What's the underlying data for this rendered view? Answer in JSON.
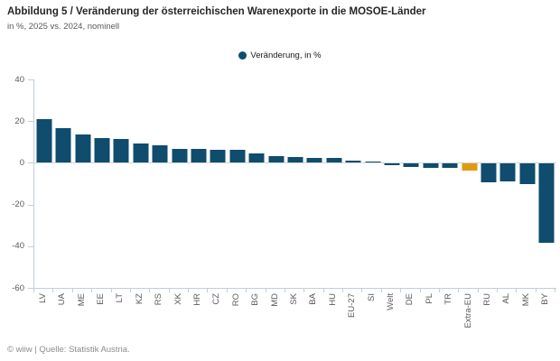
{
  "header": {
    "title": "Abbildung 5 / Veränderung der österreichischen Warenexporte in die MOSOE-Länder",
    "subtitle": "in %, 2025 vs. 2024, nominell"
  },
  "legend": {
    "label": "Veränderung, in %"
  },
  "footer": {
    "source": "© wiiw | Quelle: Statistik Austria."
  },
  "chart_data": {
    "type": "bar",
    "title": "Abbildung 5 / Veränderung der österreichischen Warenexporte in die MOSOE-Länder",
    "subtitle": "in %, 2025 vs. 2024, nominell",
    "legend_entries": [
      "Veränderung, in %"
    ],
    "legend_position": "top-center",
    "categories": [
      "LV",
      "UA",
      "ME",
      "EE",
      "LT",
      "KZ",
      "RS",
      "XK",
      "HR",
      "CZ",
      "RO",
      "BG",
      "MD",
      "SK",
      "BA",
      "HU",
      "EU-27",
      "SI",
      "Welt",
      "DE",
      "PL",
      "TR",
      "Extra-EU",
      "RU",
      "AL",
      "MK",
      "BY"
    ],
    "values": [
      21,
      16.5,
      13.8,
      12,
      11.6,
      9.2,
      8.2,
      6.6,
      6.5,
      6.4,
      6.3,
      4.6,
      3.3,
      2.7,
      2.5,
      2.4,
      1.0,
      0.4,
      -0.5,
      -1.6,
      -1.9,
      -2.0,
      -3.2,
      -9.0,
      -8.5,
      -10.0,
      -38.0
    ],
    "xlabel": "",
    "ylabel": "",
    "ylim": [
      -60,
      40
    ],
    "yticks": [
      40,
      20,
      0,
      -20,
      -40,
      -60
    ],
    "grid": false,
    "bar_color": "#0F4C6E",
    "highlight_category": "Extra-EU",
    "highlight_color": "#E2990F",
    "axis_color": "#C3CED8",
    "label_color": "#595959"
  }
}
